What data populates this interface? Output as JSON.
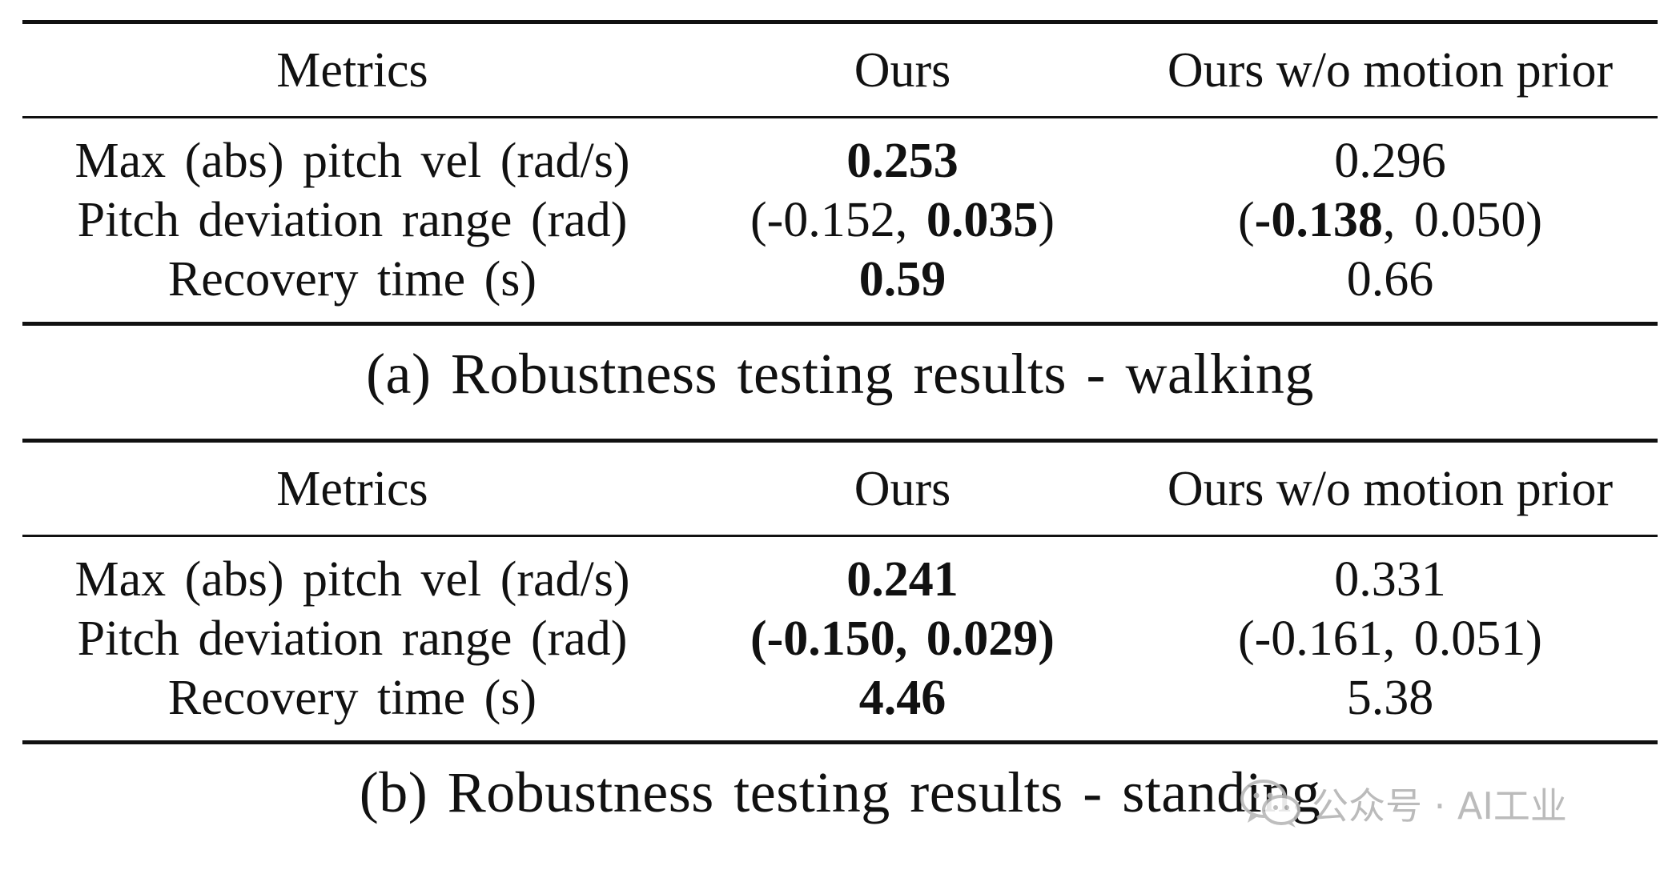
{
  "columns": [
    "Metrics",
    "Ours",
    "Ours w/o motion prior"
  ],
  "tables": [
    {
      "caption": "(a) Robustness testing results - walking",
      "rows": [
        {
          "metric": "Max (abs) pitch vel (rad/s)",
          "ours": [
            {
              "text": "0.253",
              "bold": true
            }
          ],
          "ablation": [
            {
              "text": "0.296",
              "bold": false
            }
          ]
        },
        {
          "metric": "Pitch deviation range (rad)",
          "ours": [
            {
              "text": "(-0.152, ",
              "bold": false
            },
            {
              "text": "0.035",
              "bold": true
            },
            {
              "text": ")",
              "bold": false
            }
          ],
          "ablation": [
            {
              "text": "(",
              "bold": false
            },
            {
              "text": "-0.138",
              "bold": true
            },
            {
              "text": ", 0.050)",
              "bold": false
            }
          ]
        },
        {
          "metric": "Recovery time (s)",
          "ours": [
            {
              "text": "0.59",
              "bold": true
            }
          ],
          "ablation": [
            {
              "text": "0.66",
              "bold": false
            }
          ]
        }
      ]
    },
    {
      "caption": "(b) Robustness testing results - standing",
      "rows": [
        {
          "metric": "Max (abs) pitch vel (rad/s)",
          "ours": [
            {
              "text": "0.241",
              "bold": true
            }
          ],
          "ablation": [
            {
              "text": "0.331",
              "bold": false
            }
          ]
        },
        {
          "metric": "Pitch deviation range (rad)",
          "ours": [
            {
              "text": "(-0.150, 0.029)",
              "bold": true
            }
          ],
          "ablation": [
            {
              "text": "(-0.161, 0.051)",
              "bold": false
            }
          ]
        },
        {
          "metric": "Recovery time (s)",
          "ours": [
            {
              "text": "4.46",
              "bold": true
            }
          ],
          "ablation": [
            {
              "text": "5.38",
              "bold": false
            }
          ]
        }
      ]
    }
  ],
  "watermark": {
    "icon": "wechat-icon",
    "text": "公众号 · AI工业"
  }
}
